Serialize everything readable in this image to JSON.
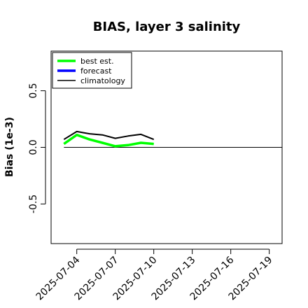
{
  "chart_data": {
    "type": "line",
    "title": "BIAS, layer 3 salinity",
    "xlabel": "",
    "ylabel": "Bias (1e-3)",
    "xlim": [
      "2025-07-02",
      "2025-07-20"
    ],
    "ylim": [
      -0.85,
      0.85
    ],
    "x_ticks": [
      "2025-07-04",
      "2025-07-07",
      "2025-07-10",
      "2025-07-13",
      "2025-07-16",
      "2025-07-19"
    ],
    "highlight_tick": "2025-07-10",
    "highlight_color": "#228B22",
    "y_ticks": [
      "-0.5",
      "0.0",
      "0.5"
    ],
    "legend": {
      "placement": "top-left"
    },
    "reference_line": {
      "y": 0,
      "from": "2025-07-03",
      "to": "2025-07-20",
      "color": "#000000"
    },
    "series": [
      {
        "name": "best est.",
        "color": "#00ff00",
        "x": [
          "2025-07-03",
          "2025-07-04",
          "2025-07-05",
          "2025-07-06",
          "2025-07-07",
          "2025-07-08",
          "2025-07-09",
          "2025-07-10"
        ],
        "y": [
          0.03,
          0.11,
          0.07,
          0.04,
          0.01,
          0.02,
          0.04,
          0.03
        ]
      },
      {
        "name": "forecast",
        "color": "#0000ff",
        "x": [],
        "y": []
      },
      {
        "name": "climatology",
        "color": "#000000",
        "x": [
          "2025-07-03",
          "2025-07-04",
          "2025-07-05",
          "2025-07-06",
          "2025-07-07",
          "2025-07-08",
          "2025-07-09",
          "2025-07-10"
        ],
        "y": [
          0.07,
          0.14,
          0.12,
          0.11,
          0.08,
          0.1,
          0.115,
          0.07
        ]
      }
    ]
  }
}
